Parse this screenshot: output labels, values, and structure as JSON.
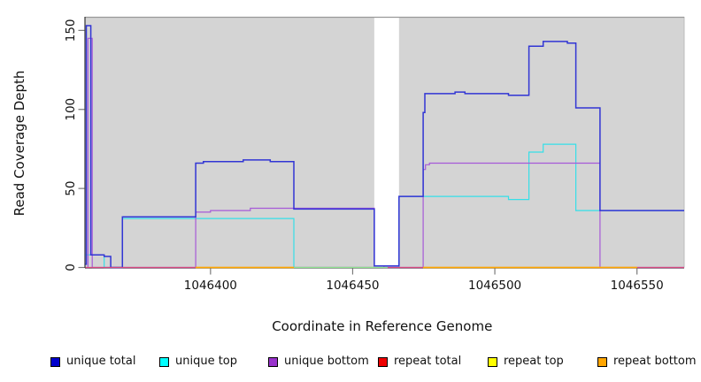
{
  "chart_data": {
    "type": "line",
    "subtype": "step-coverage",
    "title": "",
    "xlabel": "Coordinate in Reference Genome",
    "ylabel": "Read Coverage Depth",
    "xlim": [
      1046356.0,
      1046566.6
    ],
    "ylim": [
      0,
      158.6
    ],
    "xticks": [
      1046400,
      1046450,
      1046500,
      1046550
    ],
    "yticks": [
      0,
      50,
      100,
      150
    ],
    "grid": false,
    "panel_bg": "#d4d4d4",
    "panel_top_border": "#999999",
    "tick_color": "#7a7a7a",
    "text_color": "#111111",
    "gap_band": {
      "x0": 1046457.6,
      "x1": 1046466.3,
      "color": "#ffffff",
      "note": "white no-data band in panel"
    },
    "legend_position": "bottom",
    "legend": [
      {
        "label": "unique total",
        "swatch": "#0000cd"
      },
      {
        "label": "unique top",
        "swatch": "#00ffff"
      },
      {
        "label": "unique bottom",
        "swatch": "#9932cc"
      },
      {
        "label": "repeat total",
        "swatch": "#ee0000"
      },
      {
        "label": "repeat top",
        "swatch": "#ffff00"
      },
      {
        "label": "repeat bottom",
        "swatch": "#ffa500"
      }
    ],
    "series": [
      {
        "name": "unique top",
        "color": "#35dfe8",
        "width": 1.2,
        "in_legend": true,
        "segments": [
          [
            [
              1046356.0,
              8
            ],
            [
              1046362.6,
              0
            ],
            [
              1046369.0,
              31
            ],
            [
              1046429.3,
              0
            ],
            [
              1046466.3,
              45
            ],
            [
              1046504.8,
              43
            ],
            [
              1046512.0,
              73
            ],
            [
              1046517.0,
              78
            ],
            [
              1046528.5,
              36
            ],
            [
              1046566.6,
              36
            ]
          ]
        ]
      },
      {
        "name": "unique bottom",
        "color": "#a659d8",
        "width": 1.2,
        "in_legend": true,
        "segments": [
          [
            [
              1046356.6,
              0
            ],
            [
              1046356.9,
              145
            ],
            [
              1046358.4,
              0
            ],
            [
              1046394.8,
              35
            ],
            [
              1046400.0,
              36
            ],
            [
              1046414.0,
              37.5
            ],
            [
              1046457.6,
              1
            ],
            [
              1046461.0,
              0
            ],
            [
              1046474.8,
              62
            ],
            [
              1046475.6,
              65
            ],
            [
              1046477.0,
              66
            ],
            [
              1046537.0,
              0
            ],
            [
              1046566.6,
              0
            ]
          ]
        ]
      },
      {
        "name": "unique total",
        "color": "#3135d4",
        "width": 1.5,
        "in_legend": true,
        "segments": [
          [
            [
              1046356.0,
              2
            ],
            [
              1046356.3,
              153
            ],
            [
              1046357.9,
              8
            ],
            [
              1046362.6,
              7
            ],
            [
              1046364.9,
              0
            ],
            [
              1046369.0,
              32
            ],
            [
              1046394.8,
              66
            ],
            [
              1046397.5,
              67
            ],
            [
              1046411.5,
              68
            ],
            [
              1046421.0,
              67
            ],
            [
              1046429.3,
              37
            ],
            [
              1046457.6,
              1
            ],
            [
              1046466.3,
              45
            ],
            [
              1046474.8,
              98
            ],
            [
              1046475.4,
              110
            ],
            [
              1046486.0,
              111
            ],
            [
              1046489.5,
              110
            ],
            [
              1046504.8,
              109
            ],
            [
              1046512.0,
              140
            ],
            [
              1046517.0,
              143
            ],
            [
              1046525.5,
              142
            ],
            [
              1046528.5,
              101
            ],
            [
              1046537.0,
              36
            ],
            [
              1046566.6,
              36
            ]
          ]
        ]
      },
      {
        "name": "repeat total",
        "color": "#d6487e",
        "width": 1.2,
        "in_legend": true,
        "segments": [
          [
            [
              1046356.0,
              0
            ],
            [
              1046566.6,
              0
            ]
          ]
        ]
      },
      {
        "name": "repeat top",
        "color": "#ffff00",
        "width": 1.2,
        "in_legend": true,
        "segments": [
          [
            [
              1046394.8,
              0
            ],
            [
              1046429.3,
              0
            ]
          ],
          [
            [
              1046474.8,
              0
            ],
            [
              1046550.0,
              0
            ]
          ]
        ]
      },
      {
        "name": "repeat bottom",
        "color": "#ffa500",
        "width": 1.5,
        "in_legend": true,
        "segments": [
          [
            [
              1046394.8,
              0
            ],
            [
              1046429.3,
              0
            ]
          ],
          [
            [
              1046474.8,
              0
            ],
            [
              1046550.0,
              0
            ]
          ]
        ]
      },
      {
        "name": "unlabeled green baseline",
        "color": "#8ee08e",
        "width": 1.2,
        "in_legend": false,
        "segments": [
          [
            [
              1046429.3,
              0
            ],
            [
              1046462.3,
              0
            ]
          ]
        ]
      }
    ]
  }
}
